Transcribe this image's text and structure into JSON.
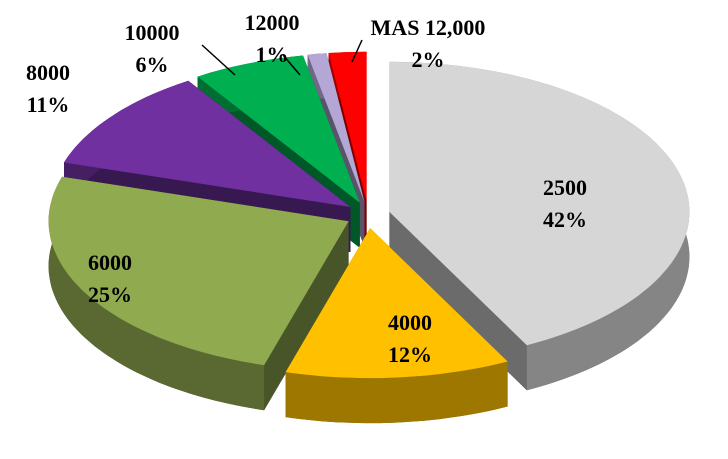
{
  "chart_data": {
    "type": "pie3d",
    "categories": [
      "2500",
      "4000",
      "6000",
      "8000",
      "10000",
      "12000",
      "MAS 12,000"
    ],
    "values": [
      42,
      12,
      25,
      11,
      6,
      1,
      2
    ],
    "value_labels": [
      "42%",
      "12%",
      "25%",
      "11%",
      "6%",
      "1%",
      "2%"
    ],
    "colors": [
      "#d6d6d6",
      "#ffc000",
      "#8faa4f",
      "#7030a0",
      "#00b050",
      "#b4a7d6",
      "#ff0000"
    ]
  }
}
